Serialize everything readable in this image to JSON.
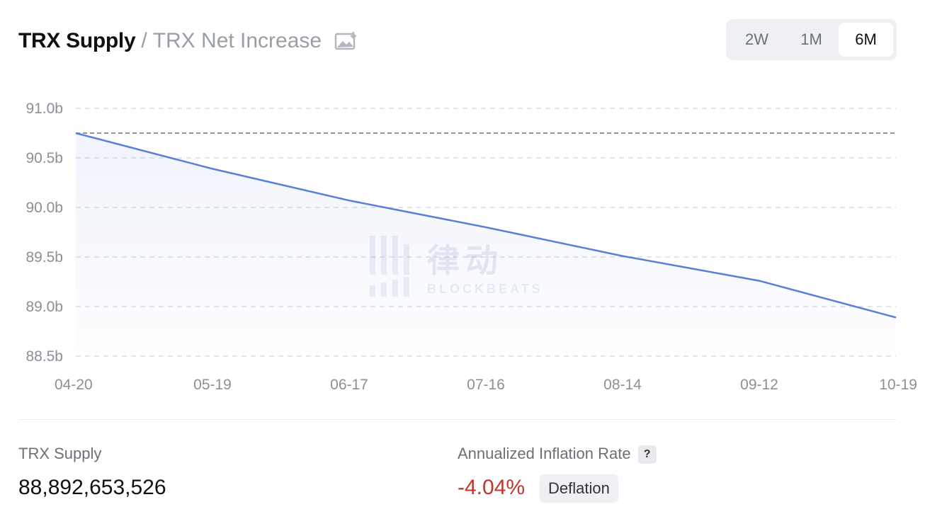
{
  "header": {
    "title": "TRX Supply",
    "separator": "/",
    "alt_title": "TRX Net Increase",
    "save_icon": "image-download-icon"
  },
  "range": {
    "options": [
      "2W",
      "1M",
      "6M"
    ],
    "selected": "6M"
  },
  "watermark": {
    "text": "律动",
    "sub": "BLOCKBEATS"
  },
  "chart_data": {
    "type": "area",
    "title": "",
    "xlabel": "",
    "ylabel": "",
    "x_ticks": [
      "04-20",
      "05-19",
      "06-17",
      "07-16",
      "08-14",
      "09-12",
      "10-19"
    ],
    "y_ticks": [
      "91.0b",
      "90.5b",
      "90.0b",
      "89.5b",
      "89.0b",
      "88.5b"
    ],
    "y_tick_values": [
      91.0,
      90.5,
      90.0,
      89.5,
      89.0,
      88.5
    ],
    "ylim": [
      88.5,
      91.0
    ],
    "y_unit": "billion TRX",
    "reference_line": 90.75,
    "grid": true,
    "line_color": "#5b7fd6",
    "series": [
      {
        "name": "TRX Supply",
        "x": [
          "04-20",
          "05-19",
          "06-17",
          "07-16",
          "08-14",
          "09-12",
          "10-19"
        ],
        "values": [
          90.75,
          90.39,
          90.07,
          89.8,
          89.51,
          89.26,
          88.89
        ]
      }
    ]
  },
  "stats": {
    "supply_label": "TRX Supply",
    "supply_value": "88,892,653,526",
    "rate_label": "Annualized Inflation Rate",
    "rate_help": "?",
    "rate_value": "-4.04%",
    "rate_badge": "Deflation",
    "rate_color": "#c2342c"
  }
}
